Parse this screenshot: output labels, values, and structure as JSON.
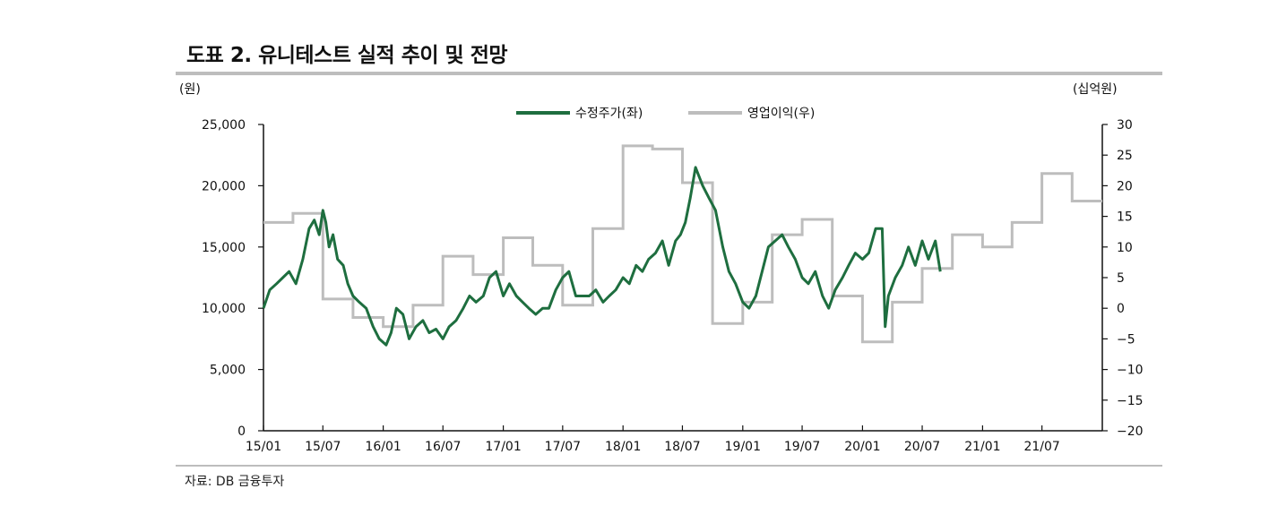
{
  "figure": {
    "title": "도표 2. 유니테스트 실적 추이 및 전망",
    "source": "자료: DB 금융투자"
  },
  "colors": {
    "price": "#1e6e3f",
    "profit": "#bdbdbd",
    "rule": "#bdbdbd"
  },
  "chart_data": {
    "type": "line",
    "title": "",
    "left_unit": "(원)",
    "right_unit": "(십억원)",
    "legend_position": "top-center",
    "grid": false,
    "x_range": [
      "2015-01",
      "2022-01"
    ],
    "x_ticks": [
      "15/01",
      "15/07",
      "16/01",
      "16/07",
      "17/01",
      "17/07",
      "18/01",
      "18/07",
      "19/01",
      "19/07",
      "20/01",
      "20/07",
      "21/01",
      "21/07"
    ],
    "y_left": {
      "range": [
        0,
        25000
      ],
      "ticks": [
        "0",
        "5,000",
        "10,000",
        "15,000",
        "20,000",
        "25,000"
      ]
    },
    "y_right": {
      "range": [
        -20,
        30
      ],
      "ticks": [
        "-20",
        "-15",
        "-10",
        "-5",
        "0",
        "5",
        "10",
        "15",
        "20",
        "25",
        "30"
      ]
    },
    "series": [
      {
        "name": "수정주가(좌)",
        "axis": "left",
        "style": "line",
        "x": [
          "2015-01-01",
          "2015-01-20",
          "2015-02-10",
          "2015-03-01",
          "2015-03-20",
          "2015-04-10",
          "2015-05-01",
          "2015-05-20",
          "2015-06-05",
          "2015-06-20",
          "2015-07-01",
          "2015-07-10",
          "2015-07-20",
          "2015-08-01",
          "2015-08-15",
          "2015-09-01",
          "2015-09-15",
          "2015-10-01",
          "2015-10-20",
          "2015-11-10",
          "2015-12-01",
          "2015-12-20",
          "2016-01-10",
          "2016-01-25",
          "2016-02-10",
          "2016-03-01",
          "2016-03-20",
          "2016-04-10",
          "2016-05-01",
          "2016-05-20",
          "2016-06-10",
          "2016-07-01",
          "2016-07-20",
          "2016-08-10",
          "2016-09-01",
          "2016-09-20",
          "2016-10-10",
          "2016-11-01",
          "2016-11-20",
          "2016-12-10",
          "2017-01-01",
          "2017-01-20",
          "2017-02-10",
          "2017-03-01",
          "2017-03-20",
          "2017-04-10",
          "2017-05-01",
          "2017-05-20",
          "2017-06-10",
          "2017-07-01",
          "2017-07-20",
          "2017-08-10",
          "2017-09-01",
          "2017-09-20",
          "2017-10-10",
          "2017-11-01",
          "2017-11-20",
          "2017-12-10",
          "2018-01-01",
          "2018-01-20",
          "2018-02-10",
          "2018-03-01",
          "2018-03-20",
          "2018-04-10",
          "2018-05-01",
          "2018-05-20",
          "2018-06-10",
          "2018-06-25",
          "2018-07-10",
          "2018-07-25",
          "2018-08-10",
          "2018-09-01",
          "2018-09-20",
          "2018-10-10",
          "2018-11-01",
          "2018-11-20",
          "2018-12-10",
          "2019-01-01",
          "2019-01-20",
          "2019-02-10",
          "2019-03-01",
          "2019-03-20",
          "2019-04-10",
          "2019-05-01",
          "2019-05-20",
          "2019-06-10",
          "2019-07-01",
          "2019-07-20",
          "2019-08-10",
          "2019-09-01",
          "2019-09-20",
          "2019-10-10",
          "2019-11-01",
          "2019-11-20",
          "2019-12-10",
          "2020-01-01",
          "2020-01-20",
          "2020-02-10",
          "2020-03-01",
          "2020-03-10",
          "2020-03-20",
          "2020-04-10",
          "2020-05-01",
          "2020-05-20",
          "2020-06-10",
          "2020-07-01",
          "2020-07-20",
          "2020-08-10",
          "2020-08-25"
        ],
        "values": [
          10000,
          11500,
          12000,
          12500,
          13000,
          12000,
          14000,
          16500,
          17200,
          16000,
          18000,
          17000,
          15000,
          16000,
          14000,
          13500,
          12000,
          11000,
          10500,
          10000,
          8500,
          7500,
          7000,
          8000,
          10000,
          9500,
          7500,
          8500,
          9000,
          8000,
          8300,
          7500,
          8500,
          9000,
          10000,
          11000,
          10500,
          11000,
          12500,
          13000,
          11000,
          12000,
          11000,
          10500,
          10000,
          9500,
          10000,
          10000,
          11500,
          12500,
          13000,
          11000,
          11000,
          11000,
          11500,
          10500,
          11000,
          11500,
          12500,
          12000,
          13500,
          13000,
          14000,
          14500,
          15500,
          13500,
          15500,
          16000,
          17000,
          19000,
          21500,
          20000,
          19000,
          18000,
          15000,
          13000,
          12000,
          10500,
          10000,
          11000,
          13000,
          15000,
          15500,
          16000,
          15000,
          14000,
          12500,
          12000,
          13000,
          11000,
          10000,
          11500,
          12500,
          13500,
          14500,
          14000,
          14500,
          16500,
          16500,
          8500,
          11000,
          12500,
          13500,
          15000,
          13500,
          15500,
          14000,
          15500,
          13000
        ]
      },
      {
        "name": "영업이익(우)",
        "axis": "right",
        "style": "step",
        "x": [
          "2015-01-01",
          "2015-04-01",
          "2015-07-01",
          "2015-10-01",
          "2016-01-01",
          "2016-04-01",
          "2016-07-01",
          "2016-10-01",
          "2017-01-01",
          "2017-04-01",
          "2017-07-01",
          "2017-10-01",
          "2018-01-01",
          "2018-04-01",
          "2018-07-01",
          "2018-10-01",
          "2019-01-01",
          "2019-04-01",
          "2019-07-01",
          "2019-10-01",
          "2020-01-01",
          "2020-04-01",
          "2020-07-01",
          "2020-10-01",
          "2021-01-01",
          "2021-04-01",
          "2021-07-01",
          "2021-10-01",
          "2022-01-01"
        ],
        "values": [
          14,
          15.5,
          1.5,
          -1.5,
          -3,
          0.5,
          8.5,
          5.5,
          11.5,
          7,
          0.5,
          13,
          26.5,
          26,
          20.5,
          -2.5,
          1,
          12,
          14.5,
          2,
          -5.5,
          1,
          6.5,
          12,
          10,
          14,
          22,
          17.5,
          17.5
        ]
      }
    ]
  }
}
